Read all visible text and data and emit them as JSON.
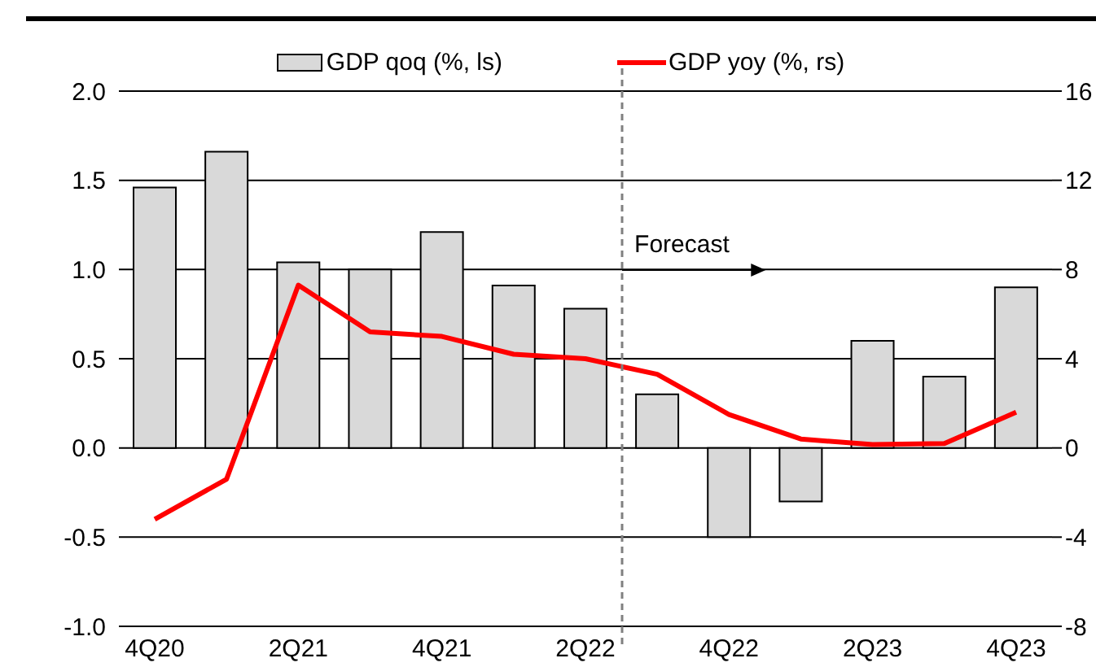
{
  "chart_data": {
    "type": "bar",
    "categories": [
      "4Q20",
      null,
      "2Q21",
      null,
      "4Q21",
      null,
      "2Q22",
      null,
      "4Q22",
      null,
      "2Q23",
      null,
      "4Q23"
    ],
    "series": [
      {
        "name": "GDP qoq (%, ls)",
        "color": "#d9d9d9",
        "values": [
          1.46,
          1.66,
          1.04,
          1.0,
          1.21,
          0.91,
          0.78,
          0.3,
          -0.5,
          -0.3,
          0.6,
          0.4,
          0.9
        ]
      },
      {
        "name": "GDP yoy (%, rs)",
        "type": "line",
        "axis": "y2",
        "color": "#ff0000",
        "values": [
          -3.2,
          -1.4,
          7.3,
          5.2,
          5.0,
          4.2,
          4.0,
          3.3,
          1.5,
          0.4,
          0.15,
          0.2,
          1.6
        ]
      }
    ],
    "ylim": [
      -1,
      2
    ],
    "yticks": [
      {
        "value": -1,
        "label": "-1.0"
      },
      {
        "value": -0.5,
        "label": "-0.5"
      },
      {
        "value": 0,
        "label": "0.0"
      },
      {
        "value": 0.5,
        "label": "0.5"
      },
      {
        "value": 1,
        "label": "1.0"
      },
      {
        "value": 1.5,
        "label": "1.5"
      },
      {
        "value": 2,
        "label": "2.0"
      }
    ],
    "y2lim": [
      -8,
      16
    ],
    "y2ticks": [
      -8,
      -4,
      0,
      4,
      8,
      12,
      16
    ],
    "annotations": [
      "Forecast"
    ],
    "grid": "y",
    "legend": "top",
    "marker": "none",
    "line_style": "solid"
  }
}
